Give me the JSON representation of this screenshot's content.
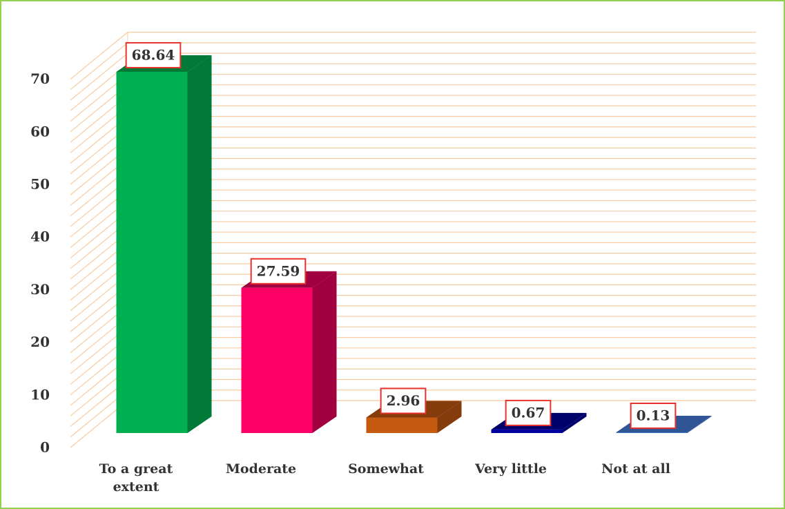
{
  "chart_data": {
    "type": "bar3d",
    "categories": [
      "To a great extent",
      "Moderate",
      "Somewhat",
      "Very little",
      "Not at all"
    ],
    "values": [
      68.64,
      27.59,
      2.96,
      0.67,
      0.13
    ],
    "colors": [
      "#00b050",
      "#ff0066",
      "#c55a11",
      "#0000a0",
      "#4472c4"
    ],
    "side_colors": [
      "#007a36",
      "#a0003f",
      "#843c0c",
      "#00006b",
      "#2f5597"
    ],
    "ylim": [
      0,
      70
    ],
    "yticks": [
      0,
      10,
      20,
      30,
      40,
      50,
      60,
      70
    ],
    "grid": true
  }
}
